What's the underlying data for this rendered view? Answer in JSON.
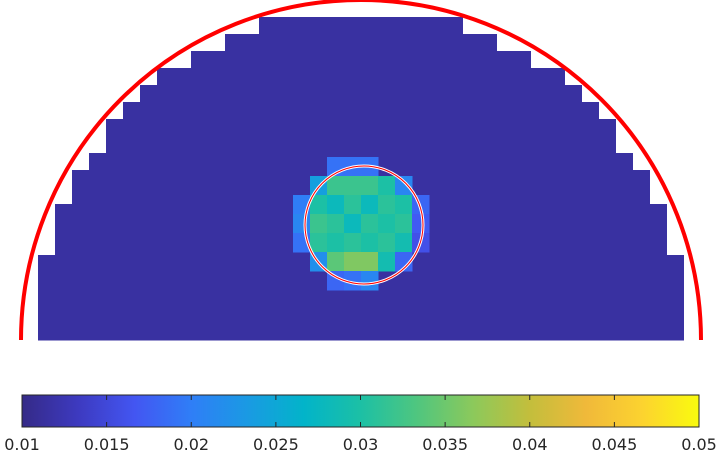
{
  "chart_data": {
    "type": "heatmap",
    "title": "",
    "xlabel": "",
    "ylabel": "",
    "colormap": "parula",
    "grid": false,
    "background_value": 0.0115,
    "inclusion": {
      "pixel_values": [
        [
          0,
          0,
          0.019,
          0.019,
          0.019,
          0,
          0,
          0
        ],
        [
          0,
          0.024,
          0.032,
          0.032,
          0.032,
          0.03,
          0.021,
          0
        ],
        [
          0.02,
          0.03,
          0.028,
          0.031,
          0.028,
          0.031,
          0.03,
          0.018
        ],
        [
          0.021,
          0.032,
          0.031,
          0.028,
          0.031,
          0.03,
          0.031,
          0.017
        ],
        [
          0.019,
          0.031,
          0.03,
          0.031,
          0.03,
          0.031,
          0.029,
          0.016
        ],
        [
          0,
          0.022,
          0.034,
          0.036,
          0.036,
          0.029,
          0.018,
          0
        ],
        [
          0,
          0,
          0.018,
          0.019,
          0.021,
          0,
          0,
          0
        ]
      ]
    },
    "colorbar": {
      "min": 0.01,
      "max": 0.05,
      "ticks": [
        0.01,
        0.015,
        0.02,
        0.025,
        0.03,
        0.035,
        0.04,
        0.045,
        0.05
      ],
      "tick_labels": [
        "0.01",
        "0.015",
        "0.02",
        "0.025",
        "0.03",
        "0.035",
        "0.04",
        "0.045",
        "0.05"
      ]
    },
    "colors": {
      "outer_boundary": "#ff0000",
      "inclusion_outline": "#ff0000",
      "inclusion_outline_inner": "#ffffff"
    }
  }
}
